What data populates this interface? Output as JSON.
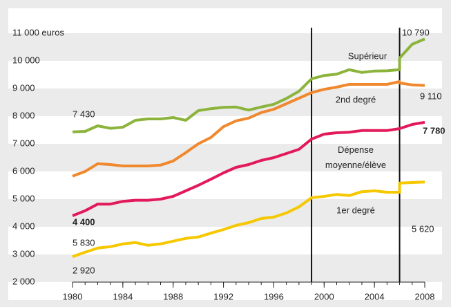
{
  "chart_data": {
    "type": "line",
    "x": [
      1980,
      1981,
      1982,
      1983,
      1984,
      1985,
      1986,
      1987,
      1988,
      1989,
      1990,
      1991,
      1992,
      1993,
      1994,
      1995,
      1996,
      1997,
      1998,
      1999,
      2000,
      2001,
      2002,
      2003,
      2004,
      2005,
      2006,
      2006,
      2007,
      2008
    ],
    "xlim": [
      1980,
      2008
    ],
    "xticks": [
      1980,
      1984,
      1988,
      1992,
      1996,
      2000,
      2004,
      2008
    ],
    "ylim": [
      2000,
      11000
    ],
    "yticks": [
      {
        "value": 2000,
        "label": "2 000"
      },
      {
        "value": 3000,
        "label": "3 000"
      },
      {
        "value": 4000,
        "label": "4 000"
      },
      {
        "value": 5000,
        "label": "5 000"
      },
      {
        "value": 6000,
        "label": "6 000"
      },
      {
        "value": 7000,
        "label": "7 000"
      },
      {
        "value": 8000,
        "label": "8 000"
      },
      {
        "value": 9000,
        "label": "9 000"
      },
      {
        "value": 10000,
        "label": "10 000"
      },
      {
        "value": 11000,
        "label": "11 000 euros"
      }
    ],
    "breaks": [
      1999,
      2006
    ],
    "series": [
      {
        "name": "Supérieur",
        "color": "#8cb43c",
        "values": [
          7430,
          7450,
          7650,
          7560,
          7600,
          7850,
          7900,
          7900,
          7950,
          7850,
          8200,
          8270,
          8320,
          8330,
          8220,
          8330,
          8430,
          8640,
          8900,
          9350,
          9470,
          9520,
          9680,
          9580,
          9630,
          9640,
          9680,
          10100,
          10600,
          10790
        ],
        "value_labels": [
          "7 430",
          null,
          null,
          null,
          null,
          null,
          null,
          null,
          null,
          null,
          null,
          null,
          null,
          null,
          null,
          null,
          null,
          null,
          null,
          null,
          null,
          null,
          null,
          null,
          null,
          null,
          null,
          null,
          null,
          "10 790"
        ]
      },
      {
        "name": "2nd degré",
        "color": "#f0882d",
        "values": [
          5830,
          6000,
          6280,
          6250,
          6200,
          6200,
          6200,
          6230,
          6380,
          6680,
          7000,
          7230,
          7620,
          7830,
          7930,
          8130,
          8250,
          8450,
          8650,
          8850,
          8970,
          9050,
          9150,
          9150,
          9150,
          9150,
          9250,
          9200,
          9130,
          9110
        ],
        "value_labels": [
          "5 830",
          null,
          null,
          null,
          null,
          null,
          null,
          null,
          null,
          null,
          null,
          null,
          null,
          null,
          null,
          null,
          null,
          null,
          null,
          null,
          null,
          null,
          null,
          null,
          null,
          null,
          null,
          null,
          null,
          "9 110"
        ]
      },
      {
        "name": "Dépense moyenne/élève",
        "color": "#e2195a",
        "value_label_bold": true,
        "values": [
          4400,
          4580,
          4820,
          4820,
          4920,
          4960,
          4960,
          5000,
          5100,
          5300,
          5500,
          5720,
          5950,
          6150,
          6250,
          6400,
          6500,
          6650,
          6800,
          7170,
          7350,
          7400,
          7420,
          7480,
          7480,
          7480,
          7550,
          7550,
          7700,
          7780
        ],
        "value_labels": [
          "4 400",
          null,
          null,
          null,
          null,
          null,
          null,
          null,
          null,
          null,
          null,
          null,
          null,
          null,
          null,
          null,
          null,
          null,
          null,
          null,
          null,
          null,
          null,
          null,
          null,
          null,
          null,
          null,
          null,
          "7 780"
        ]
      },
      {
        "name": "1er degré",
        "color": "#f5c800",
        "values": [
          2920,
          3080,
          3230,
          3280,
          3380,
          3430,
          3330,
          3380,
          3480,
          3580,
          3630,
          3770,
          3900,
          4050,
          4150,
          4300,
          4350,
          4500,
          4720,
          5050,
          5100,
          5170,
          5130,
          5270,
          5300,
          5250,
          5250,
          5580,
          5600,
          5620
        ],
        "value_labels": [
          "2 920",
          null,
          null,
          null,
          null,
          null,
          null,
          null,
          null,
          null,
          null,
          null,
          null,
          null,
          null,
          null,
          null,
          null,
          null,
          null,
          null,
          null,
          null,
          null,
          null,
          null,
          null,
          null,
          null,
          "5 620"
        ]
      }
    ]
  }
}
